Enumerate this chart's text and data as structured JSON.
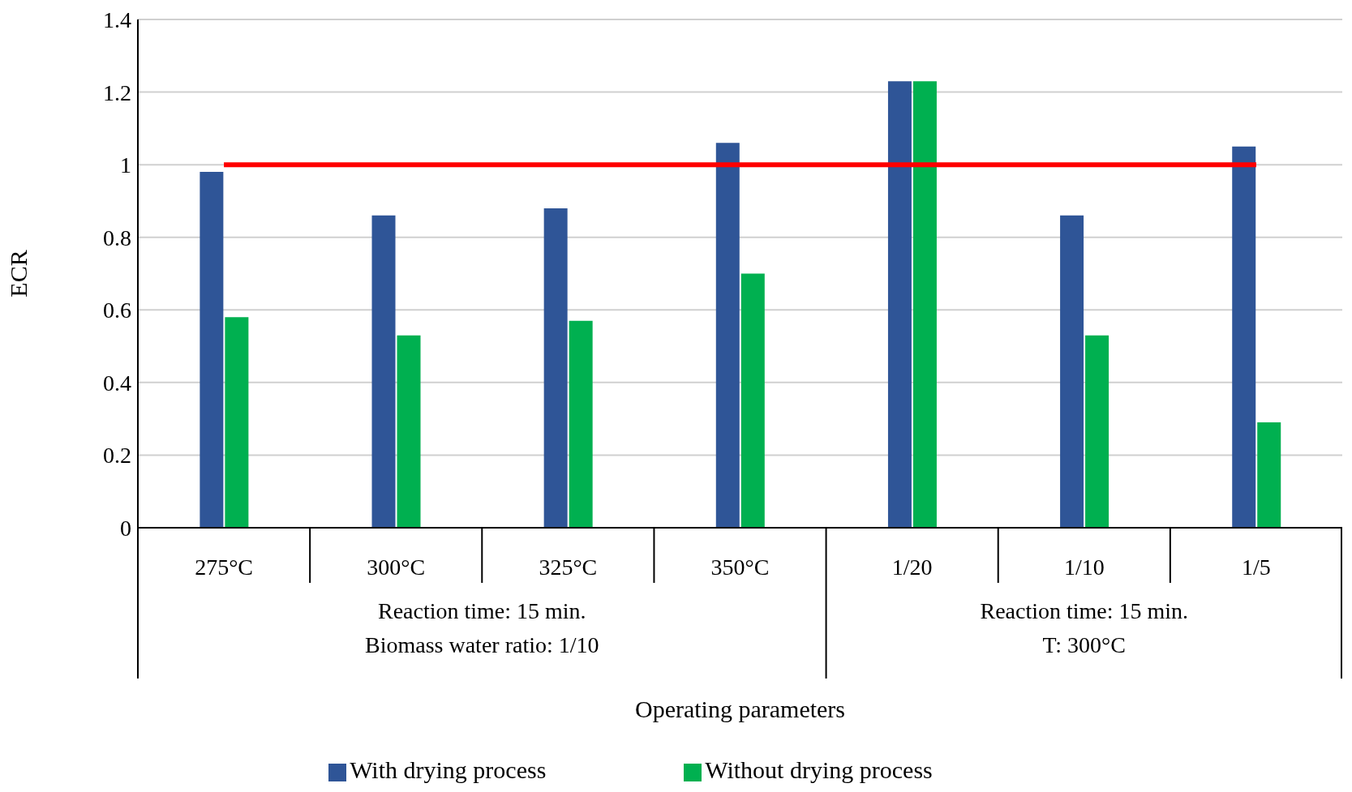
{
  "chart_data": {
    "type": "bar",
    "xlabel": "Operating parameters",
    "ylabel": "ECR",
    "categories": [
      "275°C",
      "300°C",
      "325°C",
      "350°C",
      "1/20",
      "1/10",
      "1/5"
    ],
    "series": [
      {
        "name": "With drying process",
        "color": "#2f5597",
        "values": [
          0.98,
          0.86,
          0.88,
          1.06,
          1.23,
          0.86,
          1.05
        ]
      },
      {
        "name": "Without drying process",
        "color": "#00b050",
        "values": [
          0.58,
          0.53,
          0.57,
          0.7,
          1.23,
          0.53,
          0.29
        ]
      },
      {
        "type": "line",
        "color": "#ff0000",
        "values": [
          1,
          1,
          1,
          1,
          1,
          1,
          1
        ]
      }
    ],
    "annotations": [
      "Reaction time: 15 min.\nBiomass water ratio: 1/10",
      "Reaction time: 15 min.\nT: 300°C"
    ],
    "ylim": [
      0,
      1.4
    ],
    "yticks": [
      0,
      0.2,
      0.4,
      0.6,
      0.8,
      1,
      1.2,
      1.4
    ],
    "grid": "y",
    "legend": "bottom",
    "marker": "none"
  }
}
